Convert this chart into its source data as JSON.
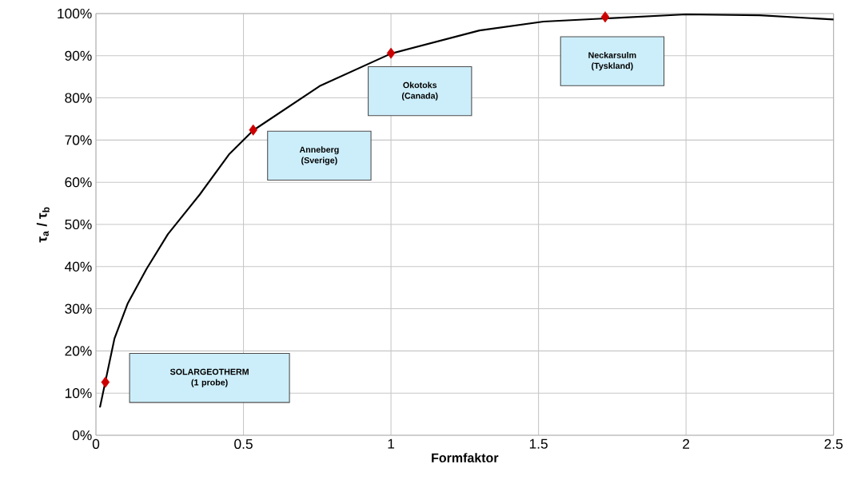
{
  "chart_data": {
    "type": "line",
    "xlabel": "Formfaktor",
    "ylabel": "τ$_{a}$ / τ$_{b}$",
    "xlim": [
      0,
      2.5
    ],
    "xticks": [
      0,
      0.5,
      1,
      1.5,
      2,
      2.5
    ],
    "ylim": [
      0,
      100
    ],
    "yticks": [
      {
        "value": 0,
        "label": "0%"
      },
      {
        "value": 10,
        "label": "10%"
      },
      {
        "value": 20,
        "label": "20%"
      },
      {
        "value": 30,
        "label": "30%"
      },
      {
        "value": 40,
        "label": "40%"
      },
      {
        "value": 50,
        "label": "50%"
      },
      {
        "value": 60,
        "label": "60%"
      },
      {
        "value": 70,
        "label": "70%"
      },
      {
        "value": 80,
        "label": "80%"
      },
      {
        "value": 90,
        "label": "90%"
      },
      {
        "value": 100,
        "label": "100%"
      }
    ],
    "grid": true,
    "series": [
      {
        "color": "#000000",
        "marker": "none",
        "x": [
          0.0135,
          0.063,
          0.108,
          0.171,
          0.244,
          0.352,
          0.451,
          0.533,
          0.758,
          1.0,
          1.3,
          1.517,
          2.0,
          2.25,
          2.5
        ],
        "values": [
          6.6,
          23.0,
          31.3,
          39.4,
          47.7,
          57.1,
          66.6,
          72.3,
          82.8,
          90.5,
          96.0,
          98.1,
          99.8,
          99.6,
          98.6
        ]
      },
      {
        "type": "scatter",
        "color": "#cc0000",
        "marker": "diamond",
        "x": [
          0.032,
          0.533,
          1.0,
          1.726
        ],
        "values": [
          12.6,
          72.4,
          90.6,
          99.2
        ]
      }
    ],
    "annotations": [
      "SOLARGEOTHERM (1 probe)",
      "Anneberg (Sverige)",
      "Okotoks (Canada)",
      "Neckarsulm (Tyskland)"
    ]
  }
}
